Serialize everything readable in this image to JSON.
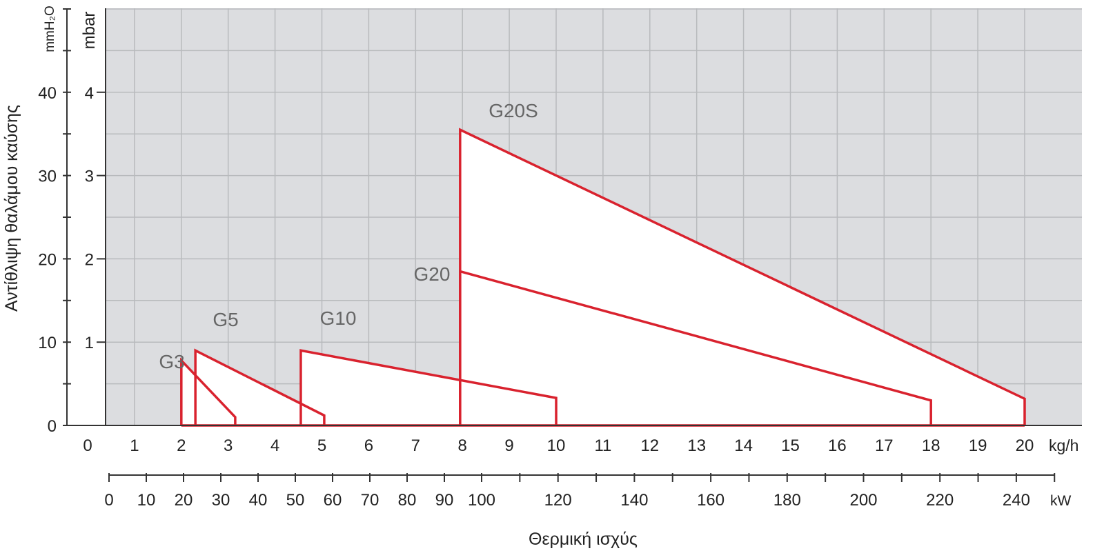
{
  "chart_data": {
    "type": "area",
    "ylabel": "Αντίθλιψη θαλάμου καύσης",
    "xlabel": "Θερμική ισχύς",
    "y_unit_left": "mmH₂O",
    "y_unit_right": "mbar",
    "x_unit_top": "kg/h",
    "x_unit_bottom": "kW",
    "ylim_mbar": [
      0,
      5
    ],
    "xlim_kgh": [
      0,
      20.5
    ],
    "grid": true,
    "y_ticks_mmh2o": [
      "0",
      "10",
      "20",
      "30",
      "40"
    ],
    "y_ticks_mbar": [
      "1",
      "2",
      "3",
      "4"
    ],
    "x_ticks_kgh": [
      "0",
      "1",
      "2",
      "3",
      "4",
      "5",
      "6",
      "7",
      "8",
      "9",
      "10",
      "11",
      "12",
      "13",
      "14",
      "15",
      "16",
      "17",
      "18",
      "19",
      "20"
    ],
    "x_ticks_kw": [
      {
        "value": 0,
        "label": "0"
      },
      {
        "value": 10,
        "label": "10"
      },
      {
        "value": 20,
        "label": "20"
      },
      {
        "value": 30,
        "label": "30"
      },
      {
        "value": 40,
        "label": "40"
      },
      {
        "value": 50,
        "label": "50"
      },
      {
        "value": 60,
        "label": "60"
      },
      {
        "value": 70,
        "label": "70"
      },
      {
        "value": 80,
        "label": "80"
      },
      {
        "value": 90,
        "label": "90"
      },
      {
        "value": 100,
        "label": "100"
      },
      {
        "value": 120,
        "label": "120"
      },
      {
        "value": 140,
        "label": "140"
      },
      {
        "value": 160,
        "label": "160"
      },
      {
        "value": 180,
        "label": "180"
      },
      {
        "value": 200,
        "label": "200"
      },
      {
        "value": 220,
        "label": "220"
      },
      {
        "value": 240,
        "label": "240"
      }
    ],
    "series": [
      {
        "name": "G3",
        "points": [
          [
            2.0,
            0
          ],
          [
            2.0,
            0.78
          ],
          [
            3.15,
            0.1
          ],
          [
            3.15,
            0
          ]
        ]
      },
      {
        "name": "G5",
        "points": [
          [
            2.3,
            0
          ],
          [
            2.3,
            0.9
          ],
          [
            5.05,
            0.12
          ],
          [
            5.05,
            0
          ]
        ]
      },
      {
        "name": "G10",
        "points": [
          [
            4.55,
            0
          ],
          [
            4.55,
            0.9
          ],
          [
            10.0,
            0.33
          ],
          [
            10.0,
            0
          ]
        ]
      },
      {
        "name": "G20",
        "points": [
          [
            7.95,
            0
          ],
          [
            7.95,
            1.85
          ],
          [
            18.0,
            0.3
          ],
          [
            18.0,
            0
          ]
        ]
      },
      {
        "name": "G20S",
        "points": [
          [
            7.95,
            0
          ],
          [
            7.95,
            3.55
          ],
          [
            20.0,
            0.32
          ],
          [
            20.0,
            0
          ]
        ]
      }
    ],
    "colors": {
      "series": "#d9222e",
      "plot_bg": "#dcdde0",
      "grid": "#b8babd",
      "axis": "#333333",
      "label": "#666666"
    }
  }
}
